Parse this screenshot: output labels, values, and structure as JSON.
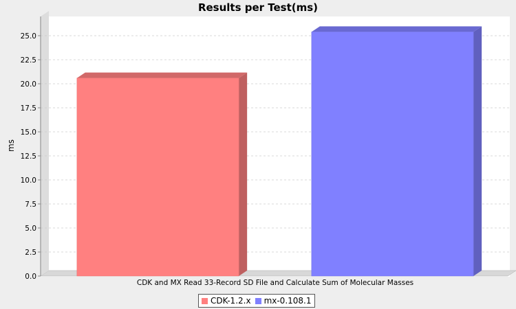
{
  "chart_data": {
    "type": "bar",
    "title": "Results per Test(ms)",
    "xlabel": "",
    "ylabel": "ms",
    "categories": [
      "CDK and MX Read 33-Record SD File and Calculate Sum of Molecular Masses"
    ],
    "series": [
      {
        "name": "CDK-1.2.x",
        "values": [
          20.6
        ],
        "color": "#ff8080"
      },
      {
        "name": "mx-0.108.1",
        "values": [
          25.4
        ],
        "color": "#8080ff"
      }
    ],
    "ylim": [
      0,
      27
    ],
    "yticks": [
      "0.0",
      "2.5",
      "5.0",
      "7.5",
      "10.0",
      "12.5",
      "15.0",
      "17.5",
      "20.0",
      "22.5",
      "25.0"
    ],
    "grid": true,
    "legend": "bottom"
  }
}
